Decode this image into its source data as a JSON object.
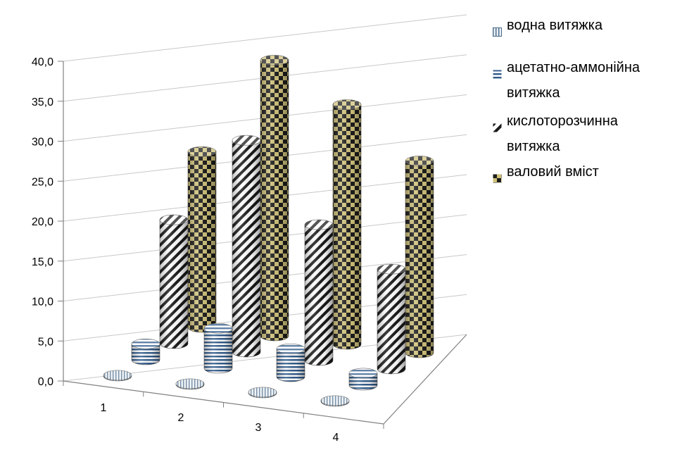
{
  "chart_data": {
    "type": "bar",
    "subtype": "3d-cylinder",
    "title": "",
    "xlabel": "",
    "ylabel": "",
    "categories": [
      "1",
      "2",
      "3",
      "4"
    ],
    "ylim": [
      0,
      40
    ],
    "yticks": [
      "0,0",
      "5,0",
      "10,0",
      "15,0",
      "20,0",
      "25,0",
      "30,0",
      "35,0",
      "40,0"
    ],
    "grid": true,
    "legend_position": "right",
    "series": [
      {
        "name": "водна витяжка",
        "values": [
          0.1,
          0.1,
          0.1,
          0.1
        ],
        "pattern": "vertical-lines",
        "color": "#4a6b8a"
      },
      {
        "name": "ацетатно-аммонійна витяжка",
        "values": [
          2.0,
          5.0,
          3.5,
          1.5
        ],
        "pattern": "horizontal-stripes",
        "color": "#2f5a8c"
      },
      {
        "name": "кислоторозчинна витяжка",
        "values": [
          15.5,
          26.5,
          17.0,
          12.5
        ],
        "pattern": "diagonal-stripes",
        "color": "#1a1a1a"
      },
      {
        "name": "валовий вміст",
        "values": [
          22.0,
          34.5,
          30.0,
          24.0
        ],
        "pattern": "checker",
        "color": "#6b6a30"
      }
    ]
  }
}
